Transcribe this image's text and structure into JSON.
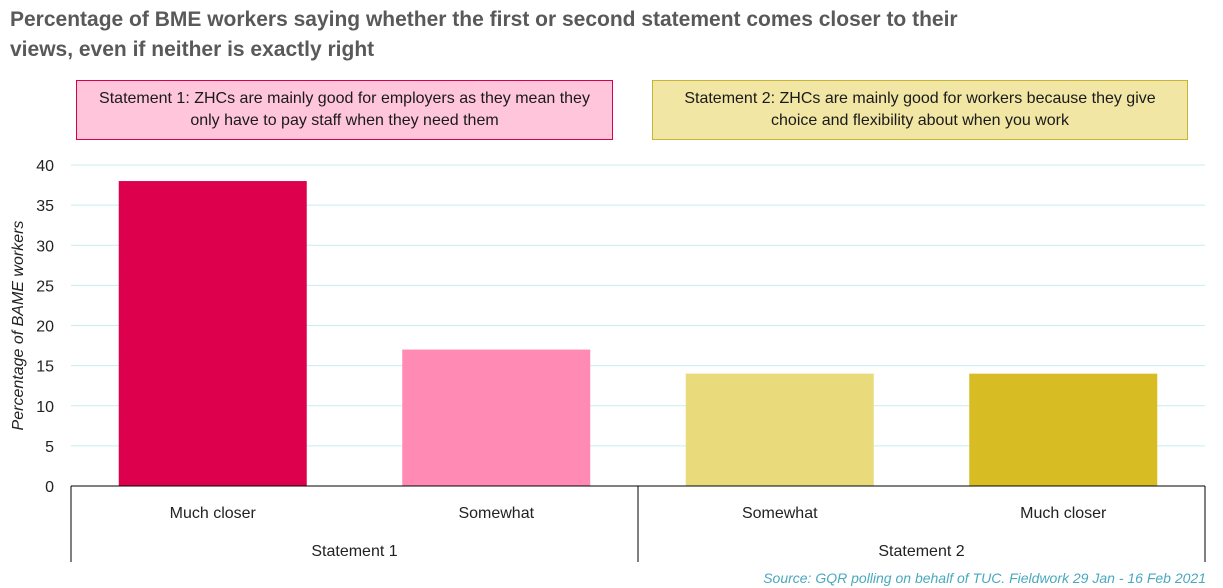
{
  "title": "Percentage of BME workers saying whether the first or second statement comes closer to their views, even if neither is exactly right",
  "statements": {
    "s1": "Statement 1: ZHCs are mainly good for employers as they mean they only have to pay staff when they need them",
    "s2": "Statement 2: ZHCs are mainly good for workers because they give choice and flexibility about when you work"
  },
  "source": "Source: GQR polling on behalf of TUC. Fieldwork 29 Jan - 16 Feb 2021",
  "colors": {
    "bar1": "#dc004d",
    "bar2": "#ff8ab4",
    "bar3": "#e9db7c",
    "bar4": "#d7bd23",
    "grid": "#c9ecef"
  },
  "chart_data": {
    "type": "bar",
    "categories": [
      "Much closer",
      "Somewhat",
      "Somewhat",
      "Much closer"
    ],
    "groups": [
      {
        "label": "Statement 1",
        "span": [
          0,
          1
        ]
      },
      {
        "label": "Statement 2",
        "span": [
          2,
          3
        ]
      }
    ],
    "values": [
      38,
      17,
      14,
      14
    ],
    "ylabel": "Percentage of BAME workers",
    "xlabel": "",
    "ylim": [
      0,
      40
    ],
    "yticks": [
      0,
      5,
      10,
      15,
      20,
      25,
      30,
      35,
      40
    ],
    "grid": true
  }
}
